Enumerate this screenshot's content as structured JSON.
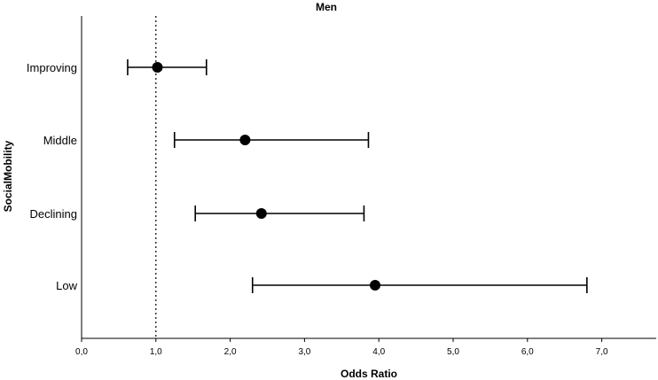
{
  "chart_data": {
    "type": "scatter",
    "subtype": "forest-plot",
    "title": "Men",
    "xlabel": "Odds Ratio",
    "ylabel": "SocialMobility",
    "xlim": [
      0,
      7.8
    ],
    "xticks": [
      0,
      1,
      2,
      3,
      4,
      5,
      6,
      7
    ],
    "xtick_labels": [
      "0,0",
      "1,0",
      "2,0",
      "3,0",
      "4,0",
      "5,0",
      "6,0",
      "7,0"
    ],
    "reference_line": {
      "x": 1.0,
      "style": "dotted"
    },
    "categories": [
      "Improving",
      "Middle",
      "Declining",
      "Low"
    ],
    "points": [
      {
        "category": "Improving",
        "estimate": 1.02,
        "lower": 0.62,
        "upper": 1.68
      },
      {
        "category": "Middle",
        "estimate": 2.2,
        "lower": 1.25,
        "upper": 3.86
      },
      {
        "category": "Declining",
        "estimate": 2.42,
        "lower": 1.53,
        "upper": 3.8
      },
      {
        "category": "Low",
        "estimate": 3.95,
        "lower": 2.3,
        "upper": 6.8
      }
    ],
    "grid": false,
    "marker_color": "#000000"
  }
}
